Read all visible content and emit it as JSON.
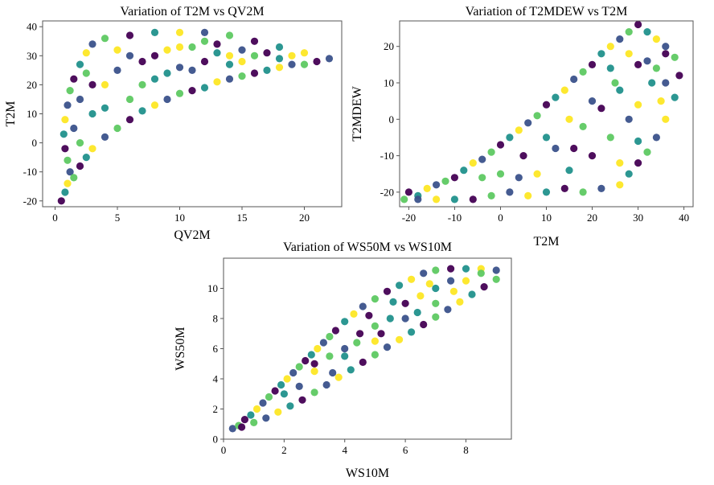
{
  "chart_data": [
    {
      "type": "scatter",
      "title": "Variation of T2M vs QV2M",
      "xlabel": "QV2M",
      "ylabel": "T2M",
      "xlim": [
        -1,
        23
      ],
      "ylim": [
        -22,
        42
      ],
      "xticks": [
        0,
        5,
        10,
        15,
        20
      ],
      "yticks": [
        -20,
        -10,
        0,
        10,
        20,
        30,
        40
      ],
      "grid": false,
      "colormap": [
        "#440154",
        "#3b528b",
        "#21918c",
        "#5ec962",
        "#fde725"
      ],
      "points": [
        [
          0.5,
          -20
        ],
        [
          0.8,
          -17
        ],
        [
          1.0,
          -14
        ],
        [
          1.2,
          -10
        ],
        [
          1.0,
          -6
        ],
        [
          0.8,
          -2
        ],
        [
          0.7,
          3
        ],
        [
          0.8,
          8
        ],
        [
          1.0,
          13
        ],
        [
          1.2,
          18
        ],
        [
          1.5,
          22
        ],
        [
          2.0,
          27
        ],
        [
          2.5,
          31
        ],
        [
          3.0,
          34
        ],
        [
          4.0,
          36
        ],
        [
          6.0,
          37
        ],
        [
          8.0,
          38
        ],
        [
          10.0,
          38
        ],
        [
          12.0,
          38
        ],
        [
          14.0,
          37
        ],
        [
          16.0,
          35
        ],
        [
          18.0,
          33
        ],
        [
          20.0,
          31
        ],
        [
          22.0,
          29
        ],
        [
          1.5,
          -12
        ],
        [
          2.0,
          -8
        ],
        [
          2.5,
          -5
        ],
        [
          3.0,
          -2
        ],
        [
          4.0,
          2
        ],
        [
          5.0,
          5
        ],
        [
          6.0,
          8
        ],
        [
          7.0,
          11
        ],
        [
          8.0,
          13
        ],
        [
          9.0,
          15
        ],
        [
          10.0,
          17
        ],
        [
          11.0,
          18
        ],
        [
          12.0,
          19
        ],
        [
          13.0,
          21
        ],
        [
          14.0,
          22
        ],
        [
          15.0,
          23
        ],
        [
          16.0,
          24
        ],
        [
          17.0,
          25
        ],
        [
          18.0,
          26
        ],
        [
          19.0,
          27
        ],
        [
          20.0,
          27
        ],
        [
          21.0,
          28
        ],
        [
          3.0,
          10
        ],
        [
          4.0,
          20
        ],
        [
          5.0,
          25
        ],
        [
          6.0,
          15
        ],
        [
          7.0,
          28
        ],
        [
          8.0,
          22
        ],
        [
          9.0,
          32
        ],
        [
          10.0,
          26
        ],
        [
          11.0,
          33
        ],
        [
          12.0,
          28
        ],
        [
          13.0,
          31
        ],
        [
          14.0,
          30
        ],
        [
          15.0,
          32
        ],
        [
          16.0,
          30
        ],
        [
          17.0,
          31
        ],
        [
          18.0,
          29
        ],
        [
          19.0,
          30
        ],
        [
          2.0,
          15
        ],
        [
          2.0,
          0
        ],
        [
          3.0,
          20
        ],
        [
          4.0,
          12
        ],
        [
          5.0,
          32
        ],
        [
          6.0,
          30
        ],
        [
          7.0,
          20
        ],
        [
          8.0,
          30
        ],
        [
          9.0,
          24
        ],
        [
          10.0,
          33
        ],
        [
          11.0,
          25
        ],
        [
          12.0,
          35
        ],
        [
          13.0,
          34
        ],
        [
          14.0,
          27
        ],
        [
          15.0,
          28
        ],
        [
          1.5,
          5
        ],
        [
          2.5,
          24
        ]
      ]
    },
    {
      "type": "scatter",
      "title": "Variation of T2MDEW vs T2M",
      "xlabel": "T2M",
      "ylabel": "T2MDEW",
      "xlim": [
        -22,
        42
      ],
      "ylim": [
        -24,
        27
      ],
      "xticks": [
        -20,
        -10,
        0,
        10,
        20,
        30,
        40
      ],
      "yticks": [
        -20,
        -10,
        0,
        10,
        20
      ],
      "grid": false,
      "colormap": [
        "#440154",
        "#3b528b",
        "#21918c",
        "#5ec962",
        "#fde725"
      ],
      "points": [
        [
          -21,
          -22
        ],
        [
          -20,
          -20
        ],
        [
          -18,
          -21
        ],
        [
          -16,
          -19
        ],
        [
          -14,
          -18
        ],
        [
          -12,
          -17
        ],
        [
          -10,
          -16
        ],
        [
          -8,
          -14
        ],
        [
          -6,
          -12
        ],
        [
          -4,
          -11
        ],
        [
          -2,
          -9
        ],
        [
          0,
          -7
        ],
        [
          2,
          -5
        ],
        [
          4,
          -3
        ],
        [
          6,
          -1
        ],
        [
          8,
          1
        ],
        [
          10,
          4
        ],
        [
          12,
          6
        ],
        [
          14,
          8
        ],
        [
          16,
          11
        ],
        [
          18,
          13
        ],
        [
          20,
          15
        ],
        [
          22,
          18
        ],
        [
          24,
          20
        ],
        [
          26,
          22
        ],
        [
          28,
          24
        ],
        [
          30,
          26
        ],
        [
          32,
          24
        ],
        [
          34,
          22
        ],
        [
          36,
          20
        ],
        [
          38,
          17
        ],
        [
          39,
          12
        ],
        [
          38,
          6
        ],
        [
          36,
          0
        ],
        [
          34,
          -5
        ],
        [
          32,
          -9
        ],
        [
          30,
          -12
        ],
        [
          28,
          -15
        ],
        [
          26,
          -18
        ],
        [
          22,
          -19
        ],
        [
          18,
          -20
        ],
        [
          14,
          -19
        ],
        [
          10,
          -20
        ],
        [
          6,
          -21
        ],
        [
          2,
          -20
        ],
        [
          -2,
          -21
        ],
        [
          -6,
          -22
        ],
        [
          -10,
          -22
        ],
        [
          -14,
          -22
        ],
        [
          -18,
          -22
        ],
        [
          0,
          -15
        ],
        [
          5,
          -10
        ],
        [
          10,
          -5
        ],
        [
          15,
          0
        ],
        [
          20,
          5
        ],
        [
          25,
          10
        ],
        [
          30,
          15
        ],
        [
          33,
          10
        ],
        [
          35,
          5
        ],
        [
          28,
          0
        ],
        [
          24,
          -5
        ],
        [
          20,
          -10
        ],
        [
          15,
          -14
        ],
        [
          8,
          -15
        ],
        [
          12,
          -8
        ],
        [
          18,
          -2
        ],
        [
          22,
          3
        ],
        [
          26,
          8
        ],
        [
          30,
          4
        ],
        [
          32,
          16
        ],
        [
          34,
          14
        ],
        [
          36,
          18
        ],
        [
          30,
          -6
        ],
        [
          26,
          -12
        ],
        [
          4,
          -16
        ],
        [
          -4,
          -16
        ],
        [
          16,
          -8
        ],
        [
          24,
          14
        ],
        [
          28,
          18
        ],
        [
          36,
          10
        ]
      ]
    },
    {
      "type": "scatter",
      "title": "Variation of WS50M vs WS10M",
      "xlabel": "WS10M",
      "ylabel": "WS50M",
      "xlim": [
        0,
        9.5
      ],
      "ylim": [
        0,
        12
      ],
      "xticks": [
        0,
        2,
        4,
        6,
        8
      ],
      "yticks": [
        0,
        2,
        4,
        6,
        8,
        10
      ],
      "grid": false,
      "colormap": [
        "#440154",
        "#3b528b",
        "#21918c",
        "#5ec962",
        "#fde725"
      ],
      "points": [
        [
          0.3,
          0.7
        ],
        [
          0.5,
          0.9
        ],
        [
          0.7,
          1.3
        ],
        [
          0.9,
          1.6
        ],
        [
          1.1,
          2.0
        ],
        [
          1.3,
          2.4
        ],
        [
          1.5,
          2.8
        ],
        [
          1.7,
          3.2
        ],
        [
          1.9,
          3.6
        ],
        [
          2.1,
          4.0
        ],
        [
          2.3,
          4.4
        ],
        [
          2.5,
          4.8
        ],
        [
          2.7,
          5.2
        ],
        [
          2.9,
          5.6
        ],
        [
          3.1,
          6.0
        ],
        [
          3.3,
          6.4
        ],
        [
          3.5,
          6.8
        ],
        [
          3.7,
          7.2
        ],
        [
          4.0,
          7.8
        ],
        [
          4.3,
          8.3
        ],
        [
          4.6,
          8.8
        ],
        [
          5.0,
          9.3
        ],
        [
          5.4,
          9.8
        ],
        [
          5.8,
          10.2
        ],
        [
          6.2,
          10.6
        ],
        [
          6.6,
          11.0
        ],
        [
          7.0,
          11.2
        ],
        [
          7.5,
          11.3
        ],
        [
          8.0,
          11.3
        ],
        [
          8.5,
          11.3
        ],
        [
          9.0,
          11.2
        ],
        [
          9.0,
          10.6
        ],
        [
          8.6,
          10.1
        ],
        [
          8.2,
          9.6
        ],
        [
          7.8,
          9.1
        ],
        [
          7.4,
          8.6
        ],
        [
          7.0,
          8.1
        ],
        [
          6.6,
          7.6
        ],
        [
          6.2,
          7.1
        ],
        [
          5.8,
          6.6
        ],
        [
          5.4,
          6.1
        ],
        [
          5.0,
          5.6
        ],
        [
          4.6,
          5.1
        ],
        [
          4.2,
          4.6
        ],
        [
          3.8,
          4.1
        ],
        [
          3.4,
          3.6
        ],
        [
          3.0,
          3.1
        ],
        [
          2.6,
          2.6
        ],
        [
          2.2,
          2.2
        ],
        [
          1.8,
          1.8
        ],
        [
          1.4,
          1.4
        ],
        [
          1.0,
          1.1
        ],
        [
          0.6,
          0.8
        ],
        [
          2.0,
          3.0
        ],
        [
          3.0,
          4.5
        ],
        [
          4.0,
          6.0
        ],
        [
          5.0,
          7.5
        ],
        [
          6.0,
          9.0
        ],
        [
          7.0,
          10.0
        ],
        [
          8.0,
          10.5
        ],
        [
          2.5,
          3.5
        ],
        [
          3.5,
          5.5
        ],
        [
          4.5,
          7.0
        ],
        [
          5.5,
          8.0
        ],
        [
          6.5,
          9.5
        ],
        [
          7.5,
          10.5
        ],
        [
          8.5,
          11.0
        ],
        [
          3.0,
          5.0
        ],
        [
          4.0,
          5.5
        ],
        [
          5.0,
          6.5
        ],
        [
          6.0,
          8.0
        ],
        [
          7.0,
          9.0
        ],
        [
          4.8,
          8.2
        ],
        [
          5.6,
          9.1
        ],
        [
          6.8,
          10.3
        ],
        [
          3.6,
          4.4
        ],
        [
          4.4,
          6.4
        ],
        [
          5.2,
          7.0
        ],
        [
          6.4,
          8.4
        ],
        [
          7.6,
          9.8
        ]
      ]
    }
  ]
}
